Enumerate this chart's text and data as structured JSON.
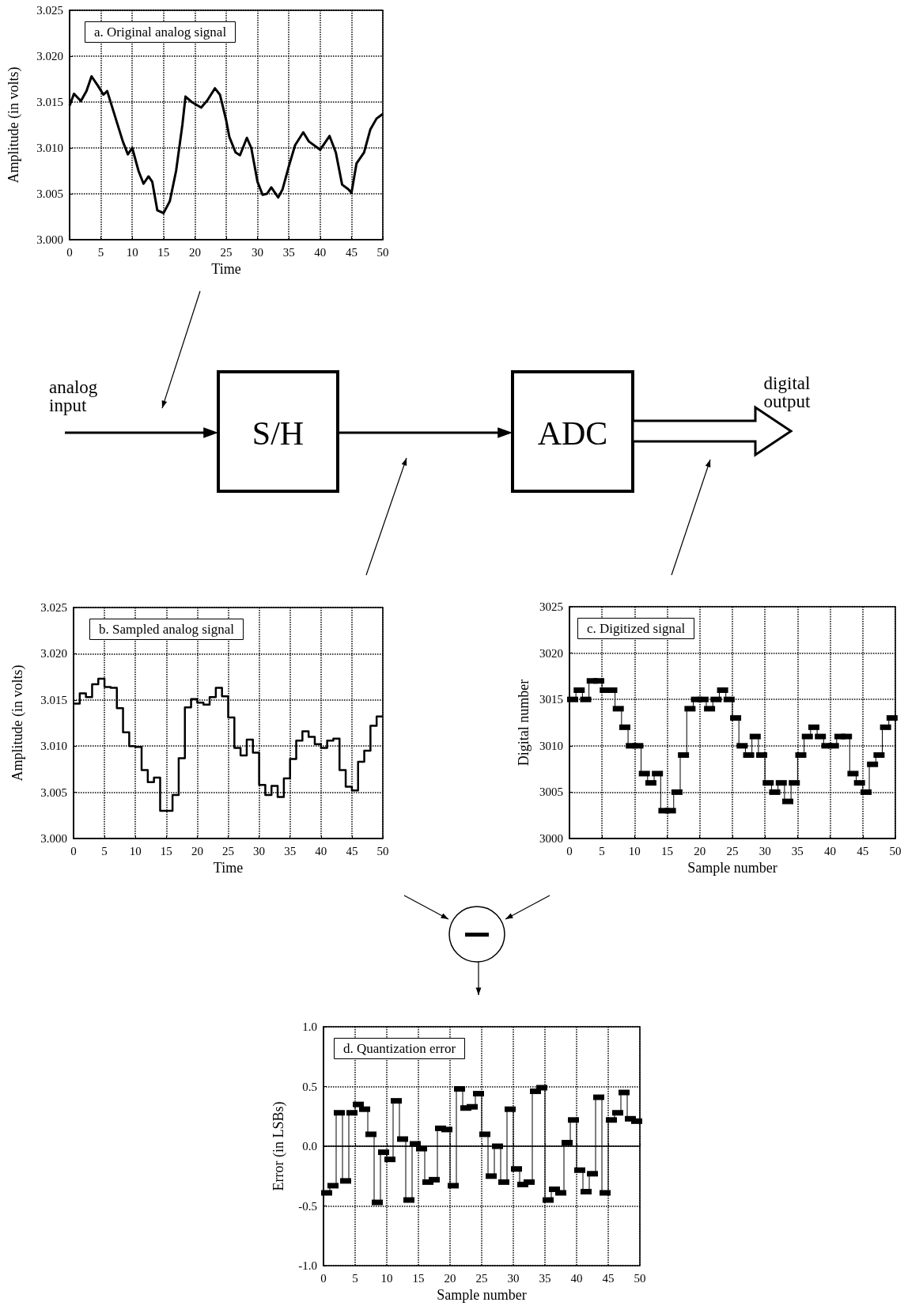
{
  "chart_data": [
    {
      "type": "line",
      "title": "a. Original analog signal",
      "xlabel": "Time",
      "ylabel": "Amplitude (in volts)",
      "color": "#000000",
      "grid": true,
      "x": [
        0,
        0.7,
        1.8,
        2.7,
        3.5,
        4.5,
        5.4,
        6,
        7,
        8.5,
        9.3,
        10,
        11,
        11.8,
        12.6,
        13.2,
        14,
        15,
        16,
        17,
        18,
        18.5,
        19.5,
        21,
        22,
        23.2,
        24,
        25,
        25.5,
        26.5,
        27.2,
        28.3,
        29,
        30,
        30.8,
        31.5,
        32.2,
        33.3,
        34,
        35,
        36,
        37.3,
        38.2,
        40,
        41.5,
        42.5,
        43.5,
        44.5,
        45,
        45.8,
        47,
        48,
        49,
        50
      ],
      "values": [
        3.0146,
        3.0159,
        3.0151,
        3.0162,
        3.0178,
        3.0168,
        3.0158,
        3.0162,
        3.014,
        3.0107,
        3.0093,
        3.01,
        3.0075,
        3.0061,
        3.0069,
        3.0063,
        3.0032,
        3.0029,
        3.0042,
        3.0075,
        3.0125,
        3.0156,
        3.015,
        3.0144,
        3.0152,
        3.0165,
        3.0158,
        3.013,
        3.0112,
        3.0095,
        3.0092,
        3.0111,
        3.01,
        3.0063,
        3.0049,
        3.005,
        3.0057,
        3.0046,
        3.0055,
        3.008,
        3.0103,
        3.0117,
        3.0107,
        3.0098,
        3.0113,
        3.0095,
        3.006,
        3.0055,
        3.0051,
        3.0083,
        3.0095,
        3.012,
        3.0132,
        3.0137
      ],
      "xlim": [
        0,
        50
      ],
      "xticks": [
        0,
        5,
        10,
        15,
        20,
        25,
        30,
        35,
        40,
        45,
        50
      ],
      "ylim": [
        3,
        3.025
      ],
      "yticks": [
        {
          "value": 3,
          "label": "3.000"
        },
        {
          "value": 3.005,
          "label": "3.005"
        },
        {
          "value": 3.01,
          "label": "3.010"
        },
        {
          "value": 3.015,
          "label": "3.015"
        },
        {
          "value": 3.02,
          "label": "3.020"
        },
        {
          "value": 3.025,
          "label": "3.025"
        }
      ]
    },
    {
      "type": "step",
      "title": "b. Sampled analog signal",
      "xlabel": "Time",
      "ylabel": "Amplitude (in volts)",
      "color": "#000000",
      "grid": true,
      "x": [
        0,
        1,
        2,
        3,
        4,
        5,
        6,
        7,
        8,
        9,
        10,
        11,
        12,
        13,
        14,
        15,
        16,
        17,
        18,
        19,
        20,
        21,
        22,
        23,
        24,
        25,
        26,
        27,
        28,
        29,
        30,
        31,
        32,
        33,
        34,
        35,
        36,
        37,
        38,
        39,
        40,
        41,
        42,
        43,
        44,
        45,
        46,
        47,
        48,
        49,
        50
      ],
      "values": [
        3.0146,
        3.0157,
        3.0153,
        3.0167,
        3.0173,
        3.0164,
        3.0163,
        3.0141,
        3.0115,
        3.01,
        3.0099,
        3.0074,
        3.0061,
        3.0066,
        3.003,
        3.003,
        3.0047,
        3.0087,
        3.0142,
        3.0151,
        3.0147,
        3.0145,
        3.0153,
        3.0163,
        3.0154,
        3.0131,
        3.0098,
        3.009,
        3.0107,
        3.0093,
        3.0058,
        3.0047,
        3.0057,
        3.0045,
        3.0065,
        3.0086,
        3.0106,
        3.0116,
        3.011,
        3.0102,
        3.0098,
        3.0106,
        3.0108,
        3.0074,
        3.0056,
        3.0052,
        3.0083,
        3.0095,
        3.0122,
        3.0132,
        3.0132
      ],
      "xlim": [
        0,
        50
      ],
      "xticks": [
        0,
        5,
        10,
        15,
        20,
        25,
        30,
        35,
        40,
        45,
        50
      ],
      "ylim": [
        3,
        3.025
      ],
      "yticks": [
        {
          "value": 3,
          "label": "3.000"
        },
        {
          "value": 3.005,
          "label": "3.005"
        },
        {
          "value": 3.01,
          "label": "3.010"
        },
        {
          "value": 3.015,
          "label": "3.015"
        },
        {
          "value": 3.02,
          "label": "3.020"
        },
        {
          "value": 3.025,
          "label": "3.025"
        }
      ]
    },
    {
      "type": "step",
      "title": "c. Digitized signal",
      "xlabel": "Sample number",
      "ylabel": "Digital number",
      "color": "#000000",
      "grid": true,
      "marker": "square",
      "x": [
        0.5,
        1.5,
        2.5,
        3.5,
        4.5,
        5.5,
        6.5,
        7.5,
        8.5,
        9.5,
        10.5,
        11.5,
        12.5,
        13.5,
        14.5,
        15.5,
        16.5,
        17.5,
        18.5,
        19.5,
        20.5,
        21.5,
        22.5,
        23.5,
        24.5,
        25.5,
        26.5,
        27.5,
        28.5,
        29.5,
        30.5,
        31.5,
        32.5,
        33.5,
        34.5,
        35.5,
        36.5,
        37.5,
        38.5,
        39.5,
        40.5,
        41.5,
        42.5,
        43.5,
        44.5,
        45.5,
        46.5,
        47.5,
        48.5,
        49.5
      ],
      "values": [
        3015,
        3016,
        3015,
        3017,
        3017,
        3016,
        3016,
        3014,
        3012,
        3010,
        3010,
        3007,
        3006,
        3007,
        3003,
        3003,
        3005,
        3009,
        3014,
        3015,
        3015,
        3014,
        3015,
        3016,
        3015,
        3013,
        3010,
        3009,
        3011,
        3009,
        3006,
        3005,
        3006,
        3004,
        3006,
        3009,
        3011,
        3012,
        3011,
        3010,
        3010,
        3011,
        3011,
        3007,
        3006,
        3005,
        3008,
        3009,
        3012,
        3013
      ],
      "xlim": [
        0,
        50
      ],
      "xticks": [
        0,
        5,
        10,
        15,
        20,
        25,
        30,
        35,
        40,
        45,
        50
      ],
      "ylim": [
        3000,
        3025
      ],
      "yticks": [
        3000,
        3005,
        3010,
        3015,
        3020,
        3025
      ]
    },
    {
      "type": "step",
      "title": "d. Quantization error",
      "xlabel": "Sample number",
      "ylabel": "Error (in LSBs)",
      "color": "#000000",
      "grid": true,
      "marker": "square",
      "x": [
        0.5,
        1.5,
        2.5,
        3.5,
        4.5,
        5.5,
        6.5,
        7.5,
        8.5,
        9.5,
        10.5,
        11.5,
        12.5,
        13.5,
        14.5,
        15.5,
        16.5,
        17.5,
        18.5,
        19.5,
        20.5,
        21.5,
        22.5,
        23.5,
        24.5,
        25.5,
        26.5,
        27.5,
        28.5,
        29.5,
        30.5,
        31.5,
        32.5,
        33.5,
        34.5,
        35.5,
        36.5,
        37.5,
        38.5,
        39.5,
        40.5,
        41.5,
        42.5,
        43.5,
        44.5,
        45.5,
        46.5,
        47.5,
        48.5,
        49.5
      ],
      "values": [
        -0.39,
        -0.33,
        0.28,
        -0.29,
        0.28,
        0.35,
        0.31,
        0.1,
        -0.47,
        -0.05,
        -0.11,
        0.38,
        0.06,
        -0.45,
        0.02,
        -0.02,
        -0.3,
        -0.28,
        0.15,
        0.14,
        -0.33,
        0.48,
        0.32,
        0.33,
        0.44,
        0.1,
        -0.25,
        0,
        -0.3,
        0.31,
        -0.19,
        -0.32,
        -0.3,
        0.46,
        0.49,
        -0.45,
        -0.36,
        -0.39,
        0.03,
        0.22,
        -0.2,
        -0.38,
        -0.23,
        0.41,
        -0.39,
        0.22,
        0.28,
        0.45,
        0.23,
        0.21
      ],
      "xlim": [
        0,
        50
      ],
      "xticks": [
        0,
        5,
        10,
        15,
        20,
        25,
        30,
        35,
        40,
        45,
        50
      ],
      "ylim": [
        -1,
        1
      ],
      "yticks": [
        {
          "value": -1,
          "label": "-1.0"
        },
        {
          "value": -0.5,
          "label": "-0.5"
        },
        {
          "value": 0,
          "label": "0.0"
        },
        {
          "value": 0.5,
          "label": "0.5"
        },
        {
          "value": 1,
          "label": "1.0"
        }
      ]
    },
    {
      "type": "other",
      "annotations": [
        "analog input",
        "S/H",
        "ADC",
        "digital output"
      ]
    }
  ]
}
